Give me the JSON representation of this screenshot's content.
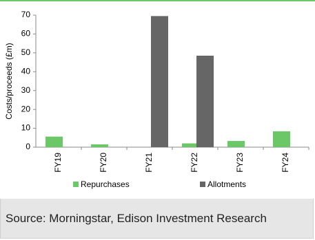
{
  "chart_data": {
    "type": "bar",
    "y_label": "Costs/proceeds (£m)",
    "categories": [
      "FY19",
      "FY20",
      "FY21",
      "FY22",
      "FY23",
      "FY24"
    ],
    "series": [
      {
        "name": "Repurchases",
        "color": "#6cc766",
        "values": [
          5.6,
          1.5,
          0,
          2,
          3.3,
          8.4
        ]
      },
      {
        "name": "Allotments",
        "color": "#666666",
        "values": [
          0,
          0,
          69.5,
          48.5,
          0,
          0
        ]
      }
    ],
    "ylim": [
      0,
      70
    ],
    "yticks": [
      0,
      10,
      20,
      30,
      40,
      50,
      60,
      70
    ],
    "grid": false,
    "legend": "bottom"
  },
  "source": "Source: Morningstar, Edison Investment Research"
}
